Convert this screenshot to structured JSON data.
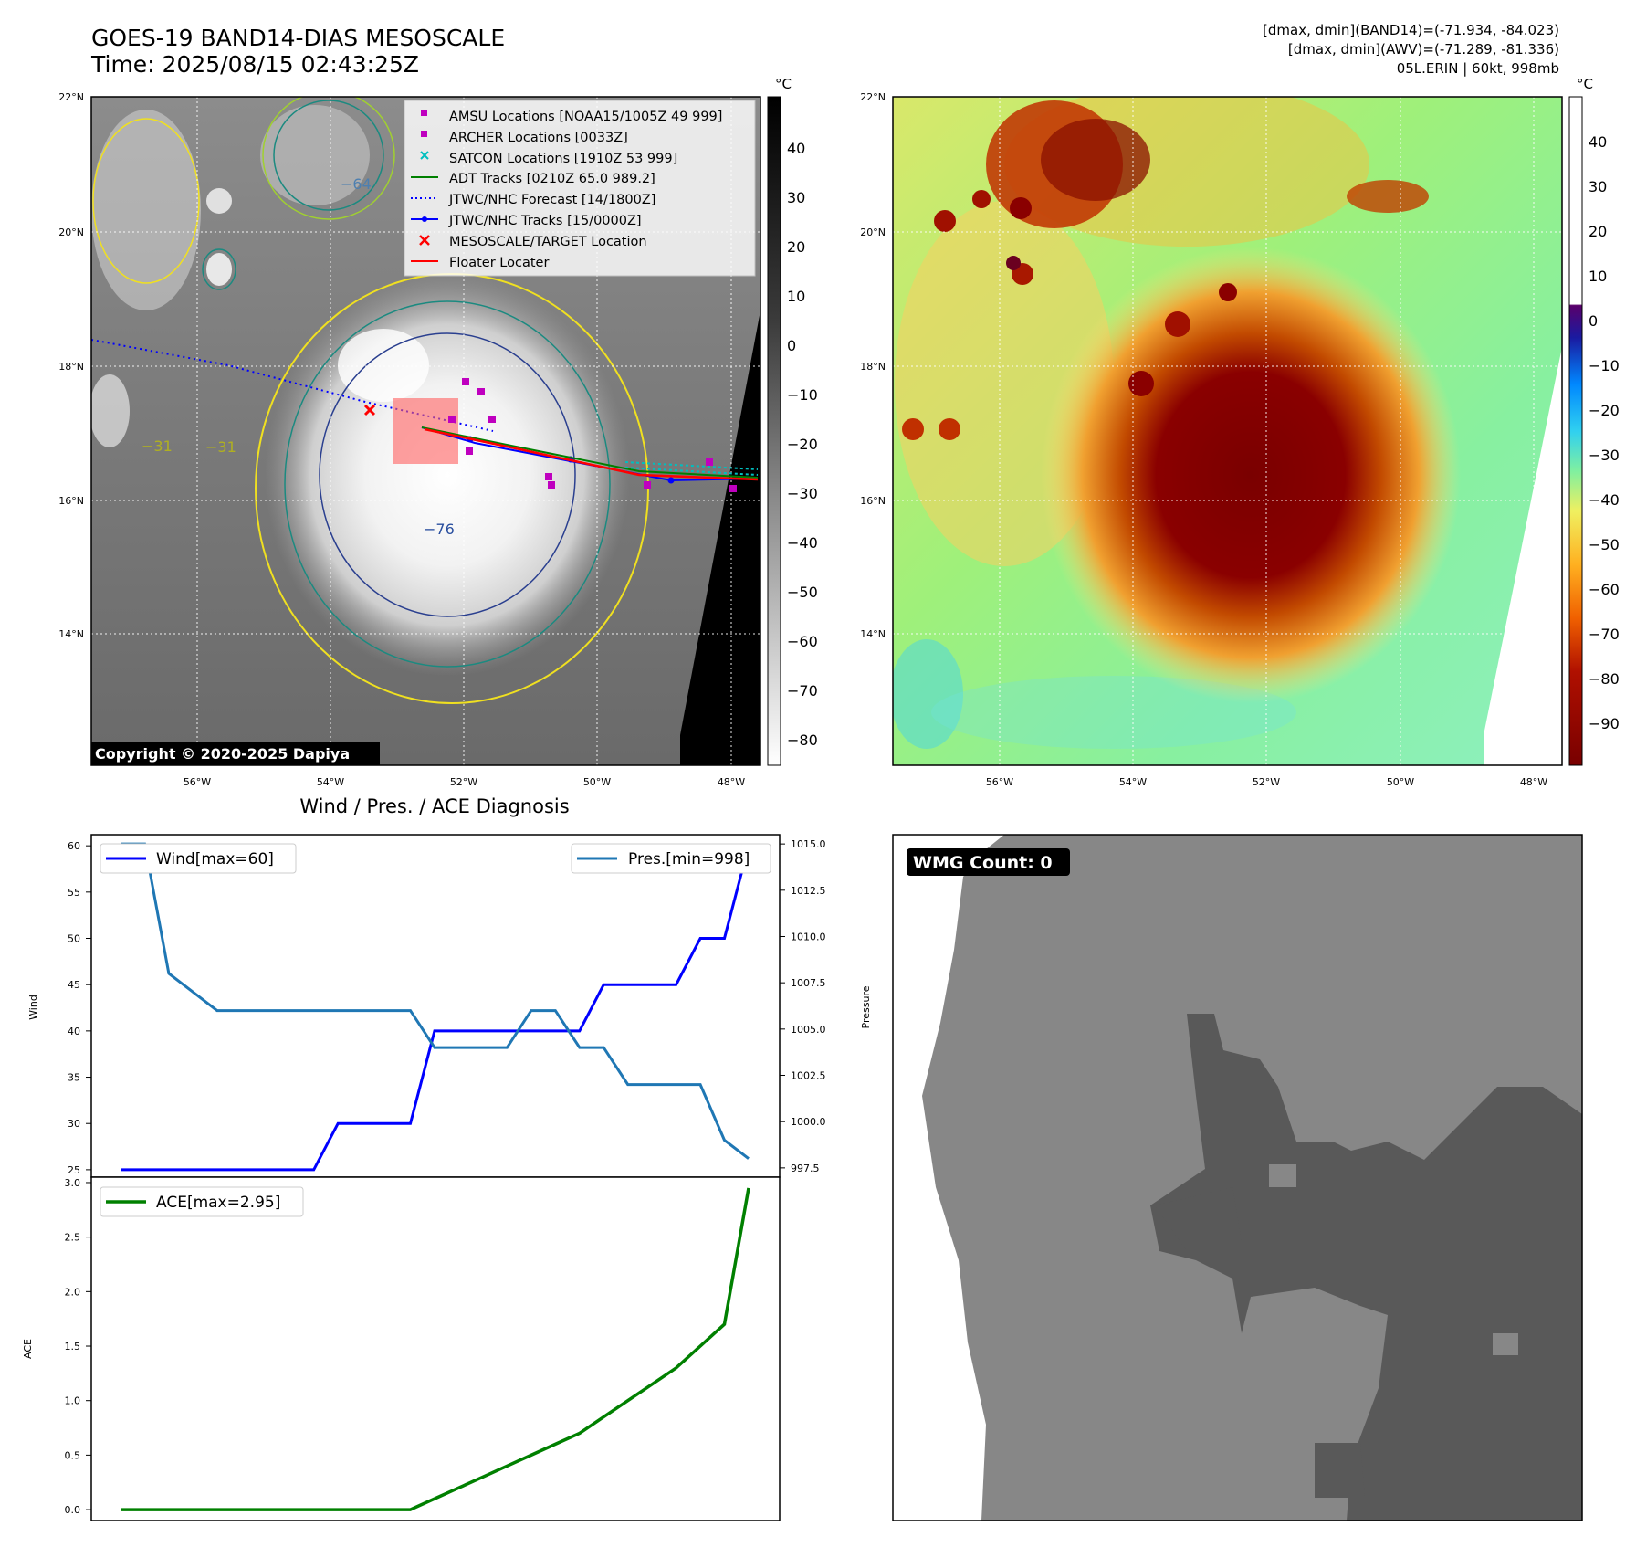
{
  "header": {
    "title_line1": "GOES-19 BAND14-DIAS MESOSCALE",
    "title_line2": "Time: 2025/08/15 02:43:25Z",
    "right_line1": "[dmax, dmin](BAND14)=(-71.934, -84.023)",
    "right_line2": "[dmax, dmin](AWV)=(-71.289, -81.336)",
    "right_line3": "05L.ERIN | 60kt, 998mb"
  },
  "map_axes": {
    "lat_ticks": [
      "22°N",
      "20°N",
      "18°N",
      "16°N",
      "14°N"
    ],
    "lon_ticks": [
      "56°W",
      "54°W",
      "52°W",
      "50°W",
      "48°W"
    ]
  },
  "ir_panel": {
    "colorbar_unit": "°C",
    "colorbar_ticks": [
      "40",
      "30",
      "20",
      "10",
      "0",
      "−10",
      "−20",
      "−30",
      "−40",
      "−50",
      "−60",
      "−70",
      "−80"
    ],
    "copyright": "Copyright © 2020-2025 Dapiya",
    "contour_labels": [
      "−64",
      "−31",
      "−31",
      "−76",
      "−64",
      "−31"
    ],
    "legend": [
      {
        "label": "AMSU Locations [NOAA15/1005Z 49 999]",
        "marker": "square",
        "color": "#bf00bf"
      },
      {
        "label": "ARCHER Locations [0033Z]",
        "marker": "square",
        "color": "#bf00bf"
      },
      {
        "label": "SATCON Locations [1910Z 53 999]",
        "marker": "x",
        "color": "#00bfbf"
      },
      {
        "label": "ADT Tracks [0210Z 65.0 989.2]",
        "marker": "line",
        "color": "#008000"
      },
      {
        "label": "JTWC/NHC Forecast [14/1800Z]",
        "marker": "dotted",
        "color": "#0000ff"
      },
      {
        "label": "JTWC/NHC Tracks [15/0000Z]",
        "marker": "line-dot",
        "color": "#0000ff"
      },
      {
        "label": "MESOSCALE/TARGET Location",
        "marker": "x",
        "color": "#ff0000"
      },
      {
        "label": "Floater Locater",
        "marker": "line",
        "color": "#ff0000"
      }
    ]
  },
  "awv_panel": {
    "colorbar_unit": "°C",
    "colorbar_ticks": [
      "40",
      "30",
      "20",
      "10",
      "0",
      "−10",
      "−20",
      "−30",
      "−40",
      "−50",
      "−60",
      "−70",
      "−80",
      "−90"
    ]
  },
  "diag_title": "Wind / Pres. / ACE Diagnosis",
  "wmg_label": "WMG Count: 0",
  "chart_data": [
    {
      "type": "line",
      "panel": "wind-pressure",
      "x": [
        0,
        1,
        2,
        3,
        4,
        5,
        6,
        7,
        8,
        9,
        10,
        11,
        12,
        13,
        14,
        15,
        16,
        17,
        18,
        19,
        20,
        21,
        22,
        23,
        24,
        25,
        26
      ],
      "series": [
        {
          "name": "Wind[max=60]",
          "axis": "left",
          "color": "#0000ff",
          "values": [
            25,
            25,
            25,
            25,
            25,
            25,
            25,
            25,
            25,
            30,
            30,
            30,
            30,
            40,
            40,
            40,
            40,
            40,
            40,
            40,
            45,
            45,
            45,
            45,
            50,
            50,
            60
          ]
        },
        {
          "name": "Pres.[min=998]",
          "axis": "right",
          "color": "#1f77b4",
          "values": [
            1015,
            1015,
            1008,
            1007,
            1006,
            1006,
            1006,
            1006,
            1006,
            1006,
            1006,
            1006,
            1006,
            1004,
            1004,
            1004,
            1004,
            1006,
            1006,
            1004,
            1004,
            1002,
            1002,
            1002,
            1002,
            999,
            998
          ]
        }
      ],
      "ylabel": "Wind",
      "ylabel_right": "Pressure",
      "ylim": [
        24.2,
        61.2
      ],
      "ylim_right": [
        997.0,
        1015.5
      ],
      "yticks": [
        "60",
        "55",
        "50",
        "45",
        "40",
        "35",
        "30",
        "25"
      ],
      "yticks_right": [
        "1015.0",
        "1012.5",
        "1010.0",
        "1007.5",
        "1005.0",
        "1002.5",
        "1000.0",
        "997.5"
      ],
      "legend": [
        "upper-left",
        "upper-right"
      ],
      "grid": false
    },
    {
      "type": "line",
      "panel": "ace",
      "x": [
        0,
        1,
        2,
        3,
        4,
        5,
        6,
        7,
        8,
        9,
        10,
        11,
        12,
        13,
        14,
        15,
        16,
        17,
        18,
        19,
        20,
        21,
        22,
        23,
        24,
        25,
        26
      ],
      "series": [
        {
          "name": "ACE[max=2.95]",
          "color": "#008000",
          "values": [
            0,
            0,
            0,
            0,
            0,
            0,
            0,
            0,
            0,
            0,
            0,
            0,
            0,
            0.1,
            0.2,
            0.3,
            0.4,
            0.5,
            0.6,
            0.7,
            0.85,
            1.0,
            1.15,
            1.3,
            1.5,
            1.7,
            2.95
          ]
        }
      ],
      "ylabel": "ACE",
      "ylim": [
        -0.1,
        3.05
      ],
      "yticks": [
        "3.0",
        "2.5",
        "2.0",
        "1.5",
        "1.0",
        "0.5",
        "0.0"
      ],
      "legend": "upper-left",
      "grid": false
    }
  ]
}
